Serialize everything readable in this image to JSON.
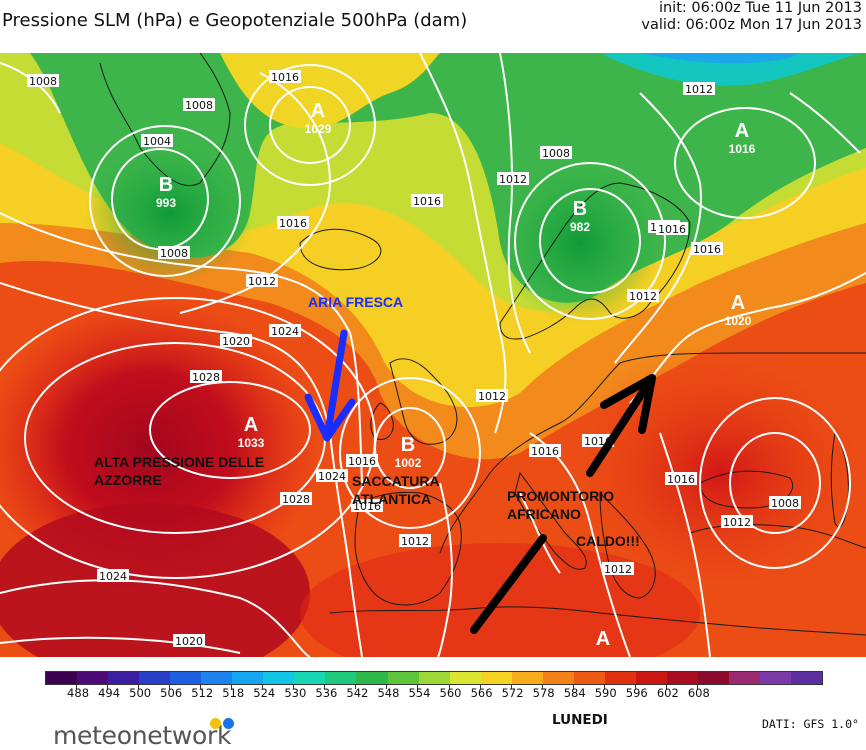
{
  "header": {
    "title": "Pressione SLM (hPa) e Geopotenziale 500hPa (dam)",
    "init": "init: 06:00z Tue 11 Jun 2013",
    "valid": "valid: 06:00z Mon 17 Jun 2013"
  },
  "centers": [
    {
      "letter": "B",
      "value": "993",
      "kind": "low"
    },
    {
      "letter": "A",
      "value": "1029",
      "kind": "high"
    },
    {
      "letter": "B",
      "value": "982",
      "kind": "low"
    },
    {
      "letter": "A",
      "value": "1016",
      "kind": "high"
    },
    {
      "letter": "A",
      "value": "1020",
      "kind": "high"
    },
    {
      "letter": "A",
      "value": "1033",
      "kind": "high"
    },
    {
      "letter": "B",
      "value": "1002",
      "kind": "low"
    },
    {
      "letter": "A",
      "value": "",
      "kind": "high"
    }
  ],
  "isobar_labels": [
    "1008",
    "1008",
    "1016",
    "1004",
    "1008",
    "1012",
    "1016",
    "1016",
    "1012",
    "1008",
    "1012",
    "1008",
    "1012",
    "1016",
    "1012",
    "1020",
    "1024",
    "1028",
    "1024",
    "1016",
    "1012",
    "1016",
    "1028",
    "1016",
    "1012",
    "1016",
    "1016",
    "1012",
    "1008",
    "1024",
    "1020",
    "1016"
  ],
  "annotations": {
    "aria_fresca": "ARIA FRESCA",
    "alta": "ALTA PRESSIONE DELLE AZZORRE",
    "saccatura": "SACCATURA ATLANTICA",
    "promontorio": "PROMONTORIO AFRICANO",
    "caldo": "CALDO!!!"
  },
  "colorbar": {
    "ticks": [
      "488",
      "494",
      "500",
      "506",
      "512",
      "518",
      "524",
      "530",
      "536",
      "542",
      "548",
      "554",
      "560",
      "566",
      "572",
      "578",
      "584",
      "590",
      "596",
      "602",
      "608"
    ],
    "colors": [
      "#3d0050",
      "#4b0a78",
      "#3a1fa0",
      "#2a3fc8",
      "#1d5fe0",
      "#1e82ef",
      "#15a6f2",
      "#14c6e6",
      "#16d6b4",
      "#1ec97c",
      "#2eb84a",
      "#5ec43a",
      "#9ed838",
      "#d9e52e",
      "#f5d323",
      "#f7ad1c",
      "#f28218",
      "#ec5a13",
      "#e1320f",
      "#cc1812",
      "#aa0d20",
      "#8c0a2c",
      "#9b2a70",
      "#7b3aa8",
      "#5b2fa0"
    ]
  },
  "footer": {
    "brand": "meteonetwork",
    "day": "LUNEDI",
    "source": "DATI: GFS 1.0°"
  },
  "colors": {
    "brand_dot_yellow": "#f4c20d",
    "brand_dot_blue": "#1a73e8",
    "arrow_blue": "#1a2dff",
    "arrow_black": "#000000"
  }
}
